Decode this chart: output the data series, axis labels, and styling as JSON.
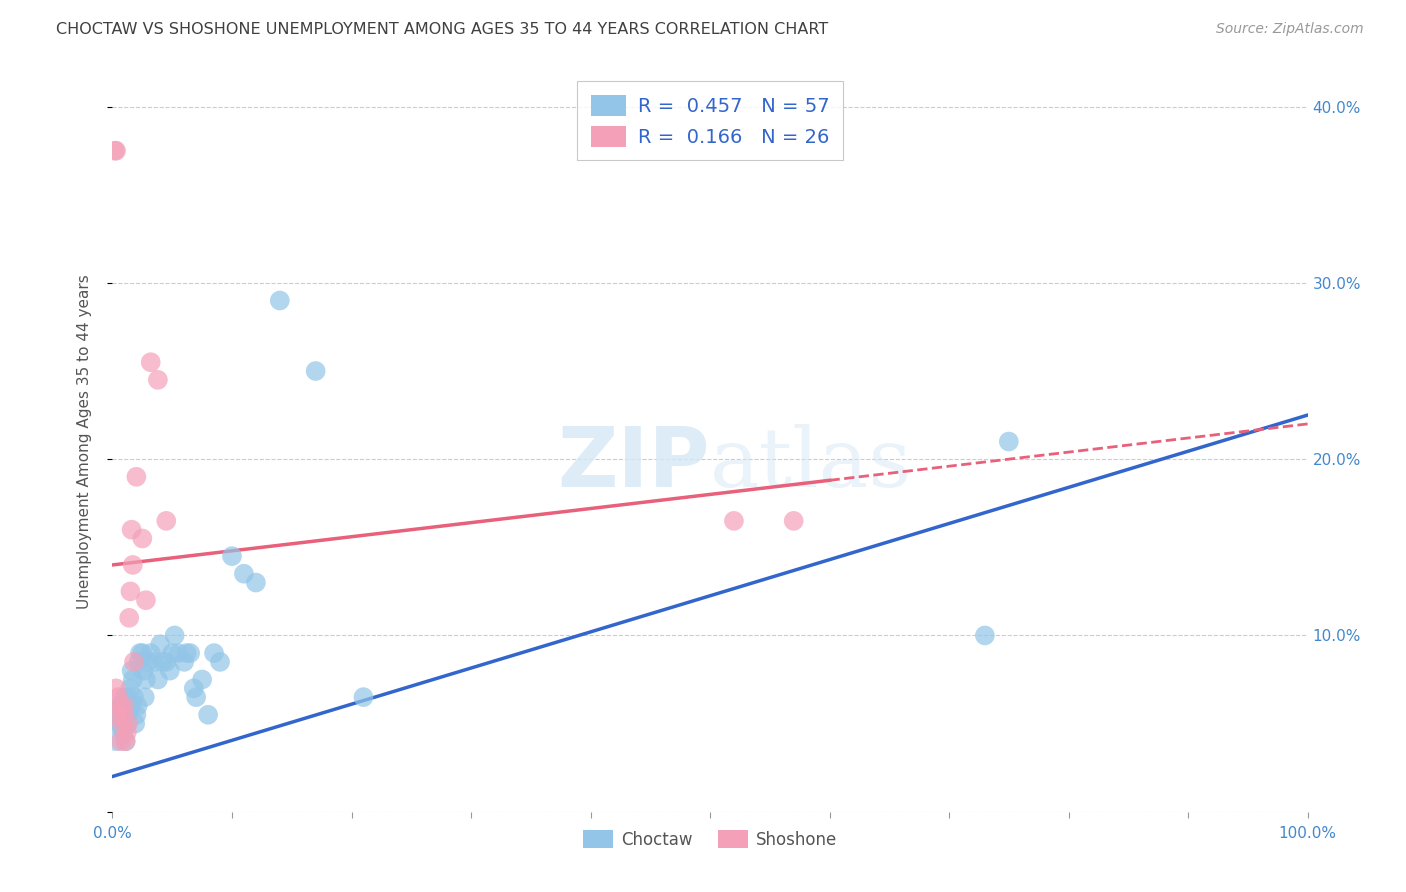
{
  "title": "CHOCTAW VS SHOSHONE UNEMPLOYMENT AMONG AGES 35 TO 44 YEARS CORRELATION CHART",
  "source": "Source: ZipAtlas.com",
  "ylabel": "Unemployment Among Ages 35 to 44 years",
  "xlim": [
    0,
    1.0
  ],
  "ylim": [
    0,
    0.42
  ],
  "xticks": [
    0.0,
    0.1,
    0.2,
    0.3,
    0.4,
    0.5,
    0.6,
    0.7,
    0.8,
    0.9,
    1.0
  ],
  "xticklabels": [
    "0.0%",
    "",
    "",
    "",
    "",
    "",
    "",
    "",
    "",
    "",
    "100.0%"
  ],
  "yticks": [
    0.0,
    0.1,
    0.2,
    0.3,
    0.4
  ],
  "yticklabels": [
    "",
    "10.0%",
    "20.0%",
    "30.0%",
    "40.0%"
  ],
  "choctaw_R": 0.457,
  "choctaw_N": 57,
  "shoshone_R": 0.166,
  "shoshone_N": 26,
  "choctaw_color": "#92C5E8",
  "shoshone_color": "#F4A0B8",
  "choctaw_line_color": "#3366CC",
  "shoshone_line_color": "#E8607A",
  "background_color": "#FFFFFF",
  "grid_color": "#CCCCCC",
  "title_color": "#404040",
  "axis_label_color": "#555555",
  "tick_label_color": "#4488CC",
  "legend_text_color": "#3366CC",
  "watermark_color": "#D5E8F5",
  "choctaw_line_intercept": 0.02,
  "choctaw_line_slope": 0.205,
  "shoshone_line_intercept": 0.14,
  "shoshone_line_slope": 0.08,
  "choctaw_x": [
    0.003,
    0.004,
    0.005,
    0.006,
    0.007,
    0.008,
    0.009,
    0.01,
    0.01,
    0.011,
    0.012,
    0.012,
    0.013,
    0.013,
    0.014,
    0.015,
    0.016,
    0.016,
    0.017,
    0.018,
    0.019,
    0.02,
    0.021,
    0.022,
    0.023,
    0.025,
    0.026,
    0.027,
    0.028,
    0.03,
    0.032,
    0.035,
    0.038,
    0.04,
    0.042,
    0.045,
    0.048,
    0.05,
    0.052,
    0.055,
    0.06,
    0.062,
    0.065,
    0.068,
    0.07,
    0.075,
    0.08,
    0.085,
    0.09,
    0.1,
    0.11,
    0.12,
    0.14,
    0.17,
    0.21,
    0.73,
    0.75
  ],
  "choctaw_y": [
    0.04,
    0.05,
    0.06,
    0.05,
    0.055,
    0.06,
    0.045,
    0.055,
    0.065,
    0.04,
    0.05,
    0.06,
    0.055,
    0.065,
    0.06,
    0.07,
    0.06,
    0.08,
    0.075,
    0.065,
    0.05,
    0.055,
    0.06,
    0.085,
    0.09,
    0.09,
    0.08,
    0.065,
    0.075,
    0.085,
    0.09,
    0.085,
    0.075,
    0.095,
    0.085,
    0.085,
    0.08,
    0.09,
    0.1,
    0.09,
    0.085,
    0.09,
    0.09,
    0.07,
    0.065,
    0.075,
    0.055,
    0.09,
    0.085,
    0.145,
    0.135,
    0.13,
    0.29,
    0.25,
    0.065,
    0.1,
    0.21
  ],
  "shoshone_x": [
    0.003,
    0.004,
    0.005,
    0.006,
    0.007,
    0.008,
    0.009,
    0.01,
    0.011,
    0.012,
    0.013,
    0.014,
    0.015,
    0.016,
    0.017,
    0.018,
    0.02,
    0.025,
    0.028,
    0.032,
    0.038,
    0.045,
    0.52,
    0.57,
    0.002,
    0.003
  ],
  "shoshone_y": [
    0.07,
    0.055,
    0.065,
    0.06,
    0.04,
    0.05,
    0.055,
    0.06,
    0.04,
    0.045,
    0.05,
    0.11,
    0.125,
    0.16,
    0.14,
    0.085,
    0.19,
    0.155,
    0.12,
    0.255,
    0.245,
    0.165,
    0.165,
    0.165,
    0.375,
    0.375
  ]
}
